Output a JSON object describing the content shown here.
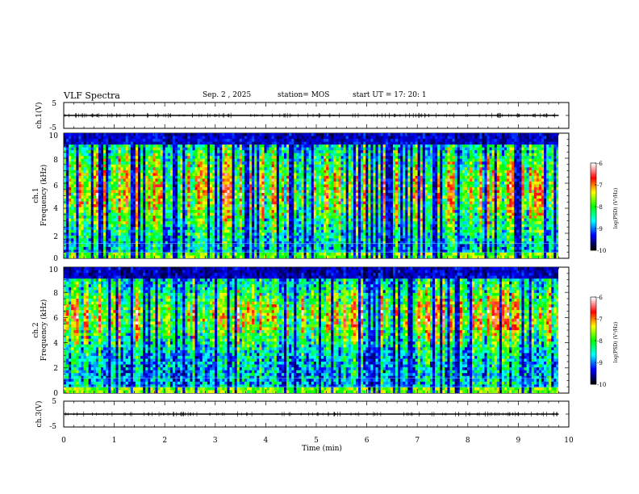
{
  "header": {
    "title": "VLF Spectra",
    "date": "Sep. 2 , 2025",
    "station": "station= MOS",
    "start_ut": "start UT =   17: 20: 1"
  },
  "colorbar": {
    "label": "log(PSD) (V²/Hz)",
    "ticks": [
      "-6",
      "-7",
      "-8",
      "-9",
      "-10"
    ],
    "range": [
      -10,
      -6
    ],
    "colors": [
      "#000000",
      "#0000ff",
      "#00ffff",
      "#00ff00",
      "#ffff00",
      "#ff0000",
      "#ffffff"
    ]
  },
  "chart_data": [
    {
      "type": "line",
      "panel": "ch1-waveform",
      "ylabel": "ch.1(V)",
      "yticks": [
        "5",
        "-5"
      ],
      "ylim": [
        -5,
        5
      ],
      "xlim": [
        0,
        10
      ],
      "x": [
        0,
        9.8
      ],
      "y": [
        0,
        0
      ]
    },
    {
      "type": "heatmap",
      "panel": "ch1-spectrogram",
      "ylabel_line1": "ch.1",
      "ylabel_line2": "Frequency (kHz)",
      "yticks": [
        "0",
        "2",
        "4",
        "6",
        "8",
        "10"
      ],
      "ylim": [
        0,
        10
      ],
      "xlim": [
        0,
        9.8
      ],
      "value_range": [
        -10,
        -6
      ]
    },
    {
      "type": "heatmap",
      "panel": "ch2-spectrogram",
      "ylabel_line1": "ch.2",
      "ylabel_line2": "Frequency (kHz)",
      "yticks": [
        "0",
        "2",
        "4",
        "6",
        "8",
        "10"
      ],
      "ylim": [
        0,
        10
      ],
      "xlim": [
        0,
        9.8
      ],
      "value_range": [
        -10,
        -6
      ]
    },
    {
      "type": "line",
      "panel": "ch3-waveform",
      "ylabel": "ch.3(V)",
      "yticks": [
        "5",
        "-5"
      ],
      "ylim": [
        -5,
        5
      ],
      "xlim": [
        0,
        10
      ],
      "x": [
        0,
        9.8
      ],
      "y": [
        0,
        0
      ]
    }
  ],
  "xaxis": {
    "label": "Time (min)",
    "ticks": [
      "0",
      "1",
      "2",
      "3",
      "4",
      "5",
      "6",
      "7",
      "8",
      "9",
      "10"
    ],
    "range": [
      0,
      10
    ]
  }
}
